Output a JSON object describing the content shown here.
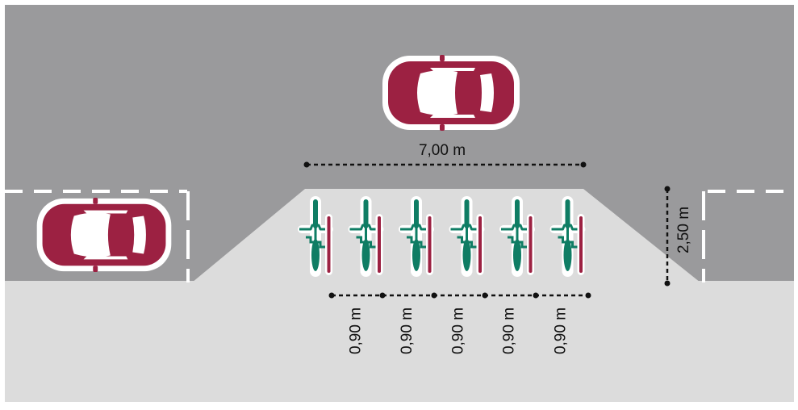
{
  "dimensions": {
    "width_label": "7,00 m",
    "depth_label": "2,50 m",
    "spacing_labels": [
      "0,90 m",
      "0,90 m",
      "0,90 m",
      "0,90 m",
      "0,90 m"
    ]
  },
  "bicycle_count": 6,
  "colors": {
    "road": "#9a9a9c",
    "sidewalk": "#dcdcdc",
    "car_body": "#9c2142",
    "bike_green": "#0f7d64",
    "bike_rail": "#9c2142",
    "marking": "#ffffff",
    "dimension_line": "#111111"
  }
}
